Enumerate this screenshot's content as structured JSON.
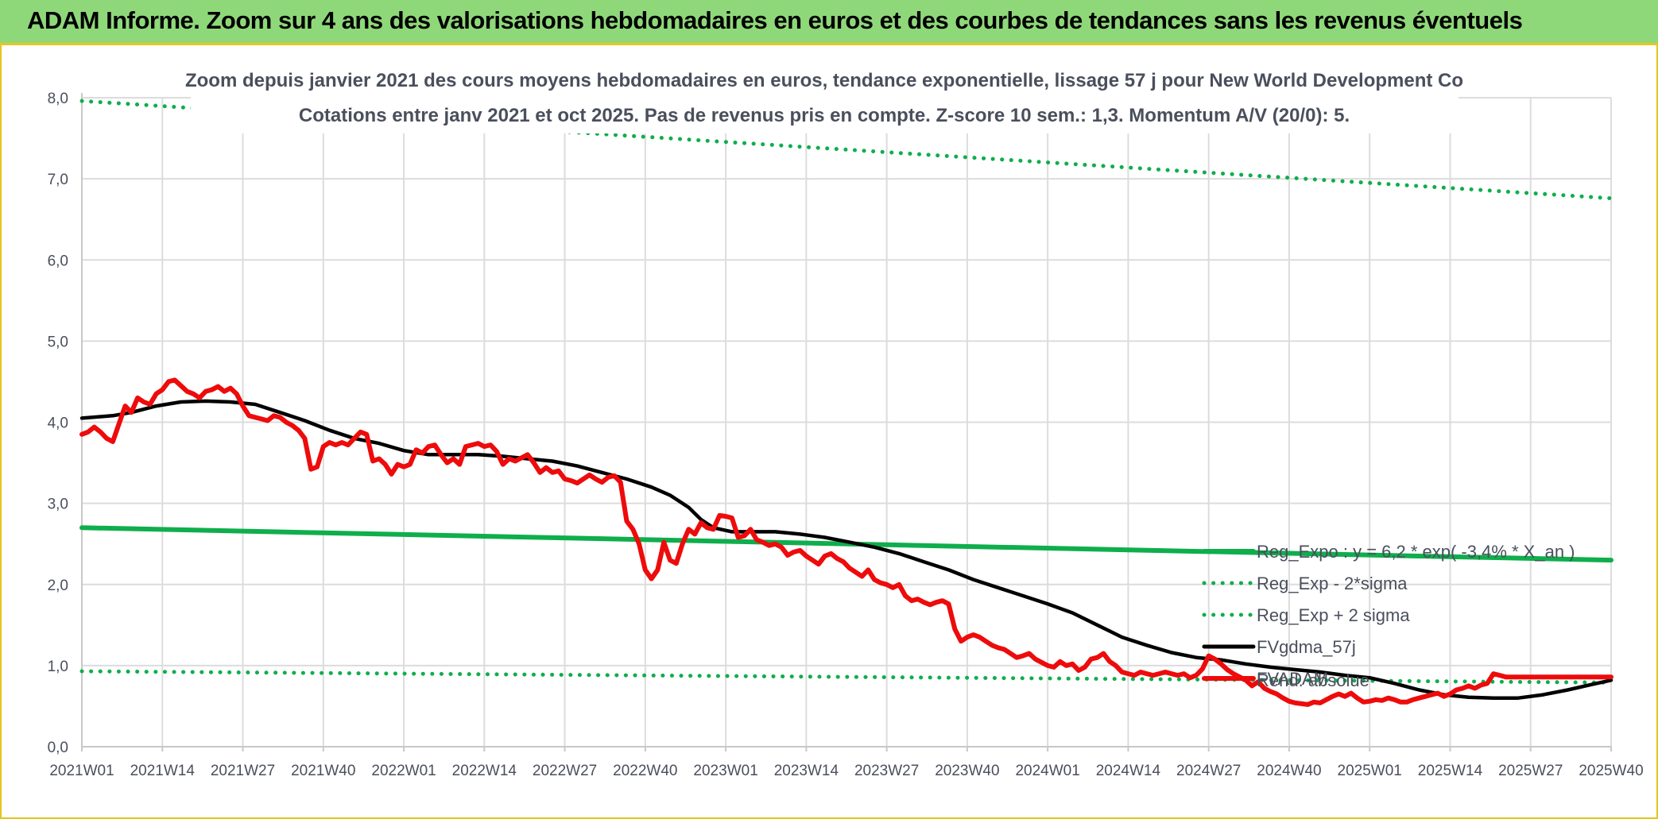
{
  "banner": {
    "title": "ADAM Informe. Zoom sur 4 ans des valorisations hebdomadaires en euros et des courbes de tendances sans les revenus éventuels"
  },
  "colors": {
    "banner_bg": "#8fd87a",
    "banner_border": "#e8c61c",
    "regression": "#0fae4c",
    "smoothing": "#000000",
    "price": "#ee0b0b",
    "grid": "#dcdcdc",
    "axis_text": "#4a4f5c"
  },
  "chart_data": {
    "type": "line",
    "title": "Zoom depuis janvier 2021 des cours moyens hebdomadaires en euros, tendance exponentielle, lissage 57 j pour New World Development Co",
    "subtitle": "Cotations entre janv 2021 et oct 2025. Pas de revenus pris en compte. Z-score 10 sem.: 1,3. Momentum A/V (20/0): 5.",
    "xlabel": "",
    "ylabel": "",
    "ylim": [
      0,
      8
    ],
    "y_ticks": [
      "0,0",
      "1,0",
      "2,0",
      "3,0",
      "4,0",
      "5,0",
      "6,0",
      "7,0",
      "8,0"
    ],
    "x_ticks": [
      "2021W01",
      "2021W14",
      "2021W27",
      "2021W40",
      "2022W01",
      "2022W14",
      "2022W27",
      "2022W40",
      "2023W01",
      "2023W14",
      "2023W27",
      "2023W40",
      "2024W01",
      "2024W14",
      "2024W27",
      "2024W40",
      "2025W01",
      "2025W14",
      "2025W27",
      "2025W40"
    ],
    "x_range_weeks": [
      0,
      247
    ],
    "grid": true,
    "legend_position": "right",
    "series": [
      {
        "name": "Reg_Expo : y = 6,2 * exp( -3,4% * X_an )",
        "style": "solid-thick",
        "color": "#0fae4c",
        "points": [
          [
            0,
            2.7
          ],
          [
            247,
            2.3
          ]
        ]
      },
      {
        "name": "Reg_Exp - 2*sigma",
        "style": "dotted",
        "color": "#0fae4c",
        "points": [
          [
            0,
            0.93
          ],
          [
            247,
            0.79
          ]
        ]
      },
      {
        "name": "Reg_Exp + 2 sigma",
        "style": "dotted",
        "color": "#0fae4c",
        "points": [
          [
            0,
            7.96
          ],
          [
            247,
            6.76
          ]
        ]
      },
      {
        "name": "FVgdma_57j",
        "style": "solid",
        "color": "#000000",
        "points": [
          [
            0,
            4.05
          ],
          [
            5,
            4.08
          ],
          [
            8,
            4.12
          ],
          [
            12,
            4.2
          ],
          [
            16,
            4.25
          ],
          [
            20,
            4.26
          ],
          [
            24,
            4.25
          ],
          [
            28,
            4.22
          ],
          [
            32,
            4.12
          ],
          [
            36,
            4.02
          ],
          [
            40,
            3.9
          ],
          [
            44,
            3.8
          ],
          [
            48,
            3.74
          ],
          [
            52,
            3.65
          ],
          [
            56,
            3.6
          ],
          [
            60,
            3.6
          ],
          [
            64,
            3.6
          ],
          [
            68,
            3.58
          ],
          [
            72,
            3.55
          ],
          [
            76,
            3.52
          ],
          [
            80,
            3.46
          ],
          [
            84,
            3.38
          ],
          [
            88,
            3.3
          ],
          [
            92,
            3.2
          ],
          [
            95,
            3.1
          ],
          [
            98,
            2.95
          ],
          [
            100,
            2.8
          ],
          [
            102,
            2.7
          ],
          [
            105,
            2.65
          ],
          [
            108,
            2.65
          ],
          [
            112,
            2.65
          ],
          [
            116,
            2.62
          ],
          [
            120,
            2.58
          ],
          [
            124,
            2.52
          ],
          [
            128,
            2.46
          ],
          [
            132,
            2.38
          ],
          [
            136,
            2.28
          ],
          [
            140,
            2.18
          ],
          [
            144,
            2.06
          ],
          [
            148,
            1.96
          ],
          [
            152,
            1.86
          ],
          [
            156,
            1.76
          ],
          [
            160,
            1.65
          ],
          [
            164,
            1.5
          ],
          [
            168,
            1.35
          ],
          [
            172,
            1.25
          ],
          [
            176,
            1.16
          ],
          [
            180,
            1.1
          ],
          [
            184,
            1.07
          ],
          [
            188,
            1.02
          ],
          [
            192,
            0.98
          ],
          [
            196,
            0.95
          ],
          [
            200,
            0.92
          ],
          [
            204,
            0.88
          ],
          [
            208,
            0.85
          ],
          [
            212,
            0.78
          ],
          [
            216,
            0.7
          ],
          [
            220,
            0.64
          ],
          [
            224,
            0.61
          ],
          [
            228,
            0.6
          ],
          [
            232,
            0.6
          ],
          [
            236,
            0.64
          ],
          [
            240,
            0.7
          ],
          [
            244,
            0.77
          ],
          [
            247,
            0.82
          ]
        ]
      },
      {
        "name": "FVADAM",
        "style": "solid-thick",
        "color": "#ee0b0b",
        "points": [
          [
            0,
            3.85
          ],
          [
            1,
            3.88
          ],
          [
            2,
            3.94
          ],
          [
            3,
            3.88
          ],
          [
            4,
            3.8
          ],
          [
            5,
            3.76
          ],
          [
            6,
            3.98
          ],
          [
            7,
            4.2
          ],
          [
            8,
            4.12
          ],
          [
            9,
            4.3
          ],
          [
            10,
            4.25
          ],
          [
            11,
            4.22
          ],
          [
            12,
            4.35
          ],
          [
            13,
            4.4
          ],
          [
            14,
            4.5
          ],
          [
            15,
            4.52
          ],
          [
            16,
            4.45
          ],
          [
            17,
            4.38
          ],
          [
            18,
            4.35
          ],
          [
            19,
            4.3
          ],
          [
            20,
            4.38
          ],
          [
            21,
            4.4
          ],
          [
            22,
            4.44
          ],
          [
            23,
            4.38
          ],
          [
            24,
            4.42
          ],
          [
            25,
            4.35
          ],
          [
            26,
            4.2
          ],
          [
            27,
            4.08
          ],
          [
            28,
            4.06
          ],
          [
            29,
            4.04
          ],
          [
            30,
            4.02
          ],
          [
            31,
            4.08
          ],
          [
            32,
            4.06
          ],
          [
            33,
            4.0
          ],
          [
            34,
            3.96
          ],
          [
            35,
            3.9
          ],
          [
            36,
            3.8
          ],
          [
            37,
            3.42
          ],
          [
            38,
            3.45
          ],
          [
            39,
            3.7
          ],
          [
            40,
            3.75
          ],
          [
            41,
            3.72
          ],
          [
            42,
            3.75
          ],
          [
            43,
            3.72
          ],
          [
            44,
            3.8
          ],
          [
            45,
            3.88
          ],
          [
            46,
            3.85
          ],
          [
            47,
            3.52
          ],
          [
            48,
            3.55
          ],
          [
            49,
            3.48
          ],
          [
            50,
            3.36
          ],
          [
            51,
            3.48
          ],
          [
            52,
            3.45
          ],
          [
            53,
            3.48
          ],
          [
            54,
            3.66
          ],
          [
            55,
            3.62
          ],
          [
            56,
            3.7
          ],
          [
            57,
            3.72
          ],
          [
            58,
            3.6
          ],
          [
            59,
            3.5
          ],
          [
            60,
            3.55
          ],
          [
            61,
            3.48
          ],
          [
            62,
            3.7
          ],
          [
            63,
            3.72
          ],
          [
            64,
            3.74
          ],
          [
            65,
            3.7
          ],
          [
            66,
            3.72
          ],
          [
            67,
            3.64
          ],
          [
            68,
            3.48
          ],
          [
            69,
            3.55
          ],
          [
            70,
            3.52
          ],
          [
            71,
            3.56
          ],
          [
            72,
            3.6
          ],
          [
            73,
            3.5
          ],
          [
            74,
            3.38
          ],
          [
            75,
            3.44
          ],
          [
            76,
            3.38
          ],
          [
            77,
            3.4
          ],
          [
            78,
            3.3
          ],
          [
            79,
            3.28
          ],
          [
            80,
            3.25
          ],
          [
            81,
            3.3
          ],
          [
            82,
            3.35
          ],
          [
            83,
            3.3
          ],
          [
            84,
            3.26
          ],
          [
            85,
            3.32
          ],
          [
            86,
            3.34
          ],
          [
            87,
            3.26
          ],
          [
            88,
            2.78
          ],
          [
            89,
            2.68
          ],
          [
            90,
            2.5
          ],
          [
            91,
            2.18
          ],
          [
            92,
            2.07
          ],
          [
            93,
            2.18
          ],
          [
            94,
            2.52
          ],
          [
            95,
            2.3
          ],
          [
            96,
            2.26
          ],
          [
            97,
            2.5
          ],
          [
            98,
            2.68
          ],
          [
            99,
            2.62
          ],
          [
            100,
            2.76
          ],
          [
            101,
            2.7
          ],
          [
            102,
            2.68
          ],
          [
            103,
            2.85
          ],
          [
            104,
            2.84
          ],
          [
            105,
            2.82
          ],
          [
            106,
            2.58
          ],
          [
            107,
            2.6
          ],
          [
            108,
            2.68
          ],
          [
            109,
            2.55
          ],
          [
            110,
            2.52
          ],
          [
            111,
            2.48
          ],
          [
            112,
            2.5
          ],
          [
            113,
            2.46
          ],
          [
            114,
            2.36
          ],
          [
            115,
            2.4
          ],
          [
            116,
            2.42
          ],
          [
            117,
            2.35
          ],
          [
            118,
            2.3
          ],
          [
            119,
            2.25
          ],
          [
            120,
            2.35
          ],
          [
            121,
            2.38
          ],
          [
            122,
            2.32
          ],
          [
            123,
            2.28
          ],
          [
            124,
            2.2
          ],
          [
            125,
            2.15
          ],
          [
            126,
            2.1
          ],
          [
            127,
            2.18
          ],
          [
            128,
            2.06
          ],
          [
            129,
            2.02
          ],
          [
            130,
            2.0
          ],
          [
            131,
            1.96
          ],
          [
            132,
            2.0
          ],
          [
            133,
            1.86
          ],
          [
            134,
            1.8
          ],
          [
            135,
            1.82
          ],
          [
            136,
            1.78
          ],
          [
            137,
            1.75
          ],
          [
            138,
            1.78
          ],
          [
            139,
            1.8
          ],
          [
            140,
            1.76
          ],
          [
            141,
            1.45
          ],
          [
            142,
            1.3
          ],
          [
            143,
            1.35
          ],
          [
            144,
            1.38
          ],
          [
            145,
            1.35
          ],
          [
            146,
            1.3
          ],
          [
            147,
            1.25
          ],
          [
            148,
            1.22
          ],
          [
            149,
            1.2
          ],
          [
            150,
            1.15
          ],
          [
            151,
            1.1
          ],
          [
            152,
            1.12
          ],
          [
            153,
            1.15
          ],
          [
            154,
            1.08
          ],
          [
            155,
            1.04
          ],
          [
            156,
            1.0
          ],
          [
            157,
            0.98
          ],
          [
            158,
            1.05
          ],
          [
            159,
            1.0
          ],
          [
            160,
            1.02
          ],
          [
            161,
            0.94
          ],
          [
            162,
            0.98
          ],
          [
            163,
            1.08
          ],
          [
            164,
            1.1
          ],
          [
            165,
            1.15
          ],
          [
            166,
            1.05
          ],
          [
            167,
            1.0
          ],
          [
            168,
            0.92
          ],
          [
            169,
            0.9
          ],
          [
            170,
            0.88
          ],
          [
            171,
            0.92
          ],
          [
            172,
            0.9
          ],
          [
            173,
            0.88
          ],
          [
            174,
            0.9
          ],
          [
            175,
            0.92
          ],
          [
            176,
            0.9
          ],
          [
            177,
            0.88
          ],
          [
            178,
            0.9
          ],
          [
            179,
            0.85
          ],
          [
            180,
            0.88
          ],
          [
            181,
            0.96
          ],
          [
            182,
            1.12
          ],
          [
            183,
            1.08
          ],
          [
            184,
            1.02
          ],
          [
            185,
            0.95
          ],
          [
            186,
            0.9
          ],
          [
            187,
            0.86
          ],
          [
            188,
            0.82
          ],
          [
            189,
            0.75
          ],
          [
            190,
            0.8
          ],
          [
            191,
            0.72
          ],
          [
            192,
            0.68
          ],
          [
            193,
            0.65
          ],
          [
            194,
            0.6
          ],
          [
            195,
            0.56
          ],
          [
            196,
            0.54
          ],
          [
            197,
            0.53
          ],
          [
            198,
            0.52
          ],
          [
            199,
            0.55
          ],
          [
            200,
            0.54
          ],
          [
            201,
            0.58
          ],
          [
            202,
            0.62
          ],
          [
            203,
            0.65
          ],
          [
            204,
            0.62
          ],
          [
            205,
            0.66
          ],
          [
            206,
            0.6
          ],
          [
            207,
            0.55
          ],
          [
            208,
            0.56
          ],
          [
            209,
            0.58
          ],
          [
            210,
            0.57
          ],
          [
            211,
            0.6
          ],
          [
            212,
            0.58
          ],
          [
            213,
            0.55
          ],
          [
            214,
            0.55
          ],
          [
            215,
            0.58
          ],
          [
            216,
            0.6
          ],
          [
            217,
            0.62
          ],
          [
            218,
            0.64
          ],
          [
            219,
            0.66
          ],
          [
            220,
            0.62
          ],
          [
            221,
            0.65
          ],
          [
            222,
            0.7
          ],
          [
            223,
            0.72
          ],
          [
            224,
            0.75
          ],
          [
            225,
            0.72
          ],
          [
            226,
            0.76
          ],
          [
            227,
            0.78
          ],
          [
            228,
            0.9
          ],
          [
            229,
            0.88
          ],
          [
            230,
            0.86
          ],
          [
            247,
            0.86
          ]
        ]
      }
    ],
    "annotations": [
      "Rend. absolue"
    ]
  }
}
